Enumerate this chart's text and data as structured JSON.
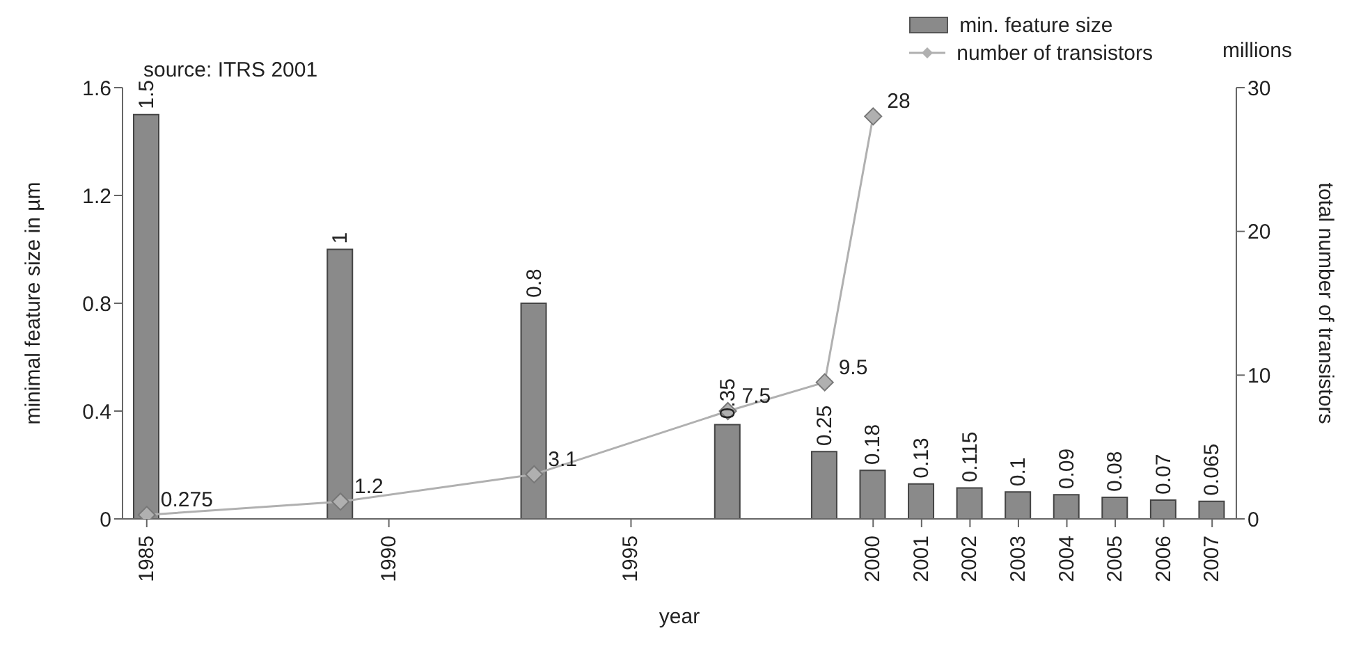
{
  "chart_data": {
    "type": "bar",
    "xlabel": "year",
    "ylabel": "minimal feature size in µm",
    "y2label": "total number of transistors",
    "annotations": [
      "source: ITRS 2001",
      "millions"
    ],
    "xlim": [
      1984.5,
      2007.5
    ],
    "xticks": [
      1985,
      1990,
      1995,
      2000,
      2001,
      2002,
      2003,
      2004,
      2005,
      2006,
      2007
    ],
    "ylim": [
      0,
      1.6
    ],
    "yticks": [
      0,
      0.4,
      0.8,
      1.2,
      1.6
    ],
    "y2lim": [
      0,
      30
    ],
    "y2ticks": [
      0,
      10,
      20,
      30
    ],
    "series": [
      {
        "name": "min. feature size",
        "type": "bar",
        "color": "#8a8a8a",
        "x": [
          1985,
          1989,
          1993,
          1997,
          1999,
          2000,
          2001,
          2002,
          2003,
          2004,
          2005,
          2006,
          2007
        ],
        "values": [
          1.5,
          1,
          0.8,
          0.35,
          0.25,
          0.18,
          0.13,
          0.115,
          0.1,
          0.09,
          0.08,
          0.07,
          0.065
        ]
      },
      {
        "name": "number of transistors",
        "type": "line",
        "axis": "y2",
        "color": "#b0b0b0",
        "x": [
          1985,
          1989,
          1993,
          1997,
          1999,
          2000
        ],
        "values": [
          0.275,
          1.2,
          3.1,
          7.5,
          9.5,
          28
        ]
      }
    ],
    "data_labels": true,
    "marker": "diamond",
    "grid": false,
    "legend": "top right"
  }
}
